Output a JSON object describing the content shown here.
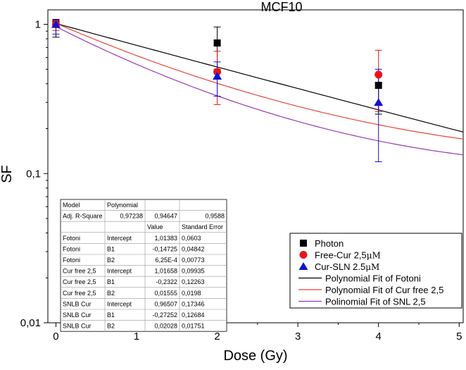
{
  "chart_data": {
    "type": "scatter",
    "title": "MCF10",
    "xlabel": "Dose (Gy)",
    "ylabel": "SF",
    "xlim": [
      -0.1,
      5.05
    ],
    "ylim": [
      0.01,
      1.25
    ],
    "yscale": "log",
    "xticks": [
      {
        "value": 0,
        "label": "0"
      },
      {
        "value": 1,
        "label": "1"
      },
      {
        "value": 2,
        "label": "2"
      },
      {
        "value": 3,
        "label": "3"
      },
      {
        "value": 4,
        "label": "4"
      },
      {
        "value": 5,
        "label": "5"
      }
    ],
    "yticks": [
      {
        "value": 1,
        "label": "1"
      },
      {
        "value": 0.1,
        "label": "0,1"
      },
      {
        "value": 0.01,
        "label": "0,01"
      }
    ],
    "series": [
      {
        "name": "Photon",
        "display_name": "Photon",
        "marker": "square",
        "color": "#000000",
        "x": [
          0,
          2,
          4
        ],
        "y": [
          1.0,
          0.75,
          0.39
        ],
        "err_low": [
          0.82,
          0.5,
          0.25
        ],
        "err_high": [
          1.08,
          0.96,
          0.46
        ]
      },
      {
        "name": "Free-Cur 2,5μM",
        "display_name": "Free-Cur 2,5",
        "unit": "μM",
        "marker": "circle",
        "color": "#e8151b",
        "x": [
          0,
          2,
          4
        ],
        "y": [
          1.0,
          0.48,
          0.46
        ],
        "err_low": [
          0.91,
          0.29,
          0.26
        ],
        "err_high": [
          1.06,
          0.66,
          0.67
        ]
      },
      {
        "name": "Cur-SLN 2.5μM",
        "display_name": "Cur-SLN 2.5",
        "unit": "μM",
        "marker": "triangle",
        "color": "#1212d0",
        "x": [
          0,
          2,
          4
        ],
        "y": [
          1.0,
          0.45,
          0.3
        ],
        "err_low": [
          0.86,
          0.33,
          0.12
        ],
        "err_high": [
          1.07,
          0.56,
          0.5
        ]
      }
    ],
    "fits": [
      {
        "name": "Polynomial Fit of Fotoni",
        "color": "#000000",
        "model": "log10",
        "intercept": 1.01383,
        "b1": -0.14725,
        "b2": 0.000625
      },
      {
        "name": "Polynomial Fit of Cur free 2,5",
        "color": "#e8453a",
        "model": "log10",
        "intercept": 1.01658,
        "b1": -0.2322,
        "b2": 0.01555
      },
      {
        "name": "Polinomial Fit of SNL 2,5",
        "color": "#9a3ab8",
        "model": "log10",
        "intercept": 0.96507,
        "b1": -0.27252,
        "b2": 0.02028
      }
    ],
    "table": {
      "header": [
        "Model",
        "Polynomial",
        "",
        ""
      ],
      "adj_row": [
        "Adj. R-Square",
        "0,97238",
        "0,94647",
        "0,9588"
      ],
      "subheader": [
        "",
        "",
        "Value",
        "Standard Error"
      ],
      "rows": [
        [
          "Fotoni",
          "Intercept",
          "1,01383",
          "0,0603"
        ],
        [
          "Fotoni",
          "B1",
          "-0,14725",
          "0,04842"
        ],
        [
          "Fotoni",
          "B2",
          "6,25E-4",
          "0,00773"
        ],
        [
          "Cur free 2,5",
          "Intercept",
          "1,01658",
          "0,09935"
        ],
        [
          "Cur free 2,5",
          "B1",
          "-0,2322",
          "0,12263"
        ],
        [
          "Cur free 2,5",
          "B2",
          "0,01555",
          "0,0198"
        ],
        [
          "SNLB Cur",
          "Intercept",
          "0,96507",
          "0,17346"
        ],
        [
          "SNLB Cur",
          "B1",
          "-0,27252",
          "0,12684"
        ],
        [
          "SNLB Cur",
          "B2",
          "0,02028",
          "0,01751"
        ]
      ]
    }
  }
}
